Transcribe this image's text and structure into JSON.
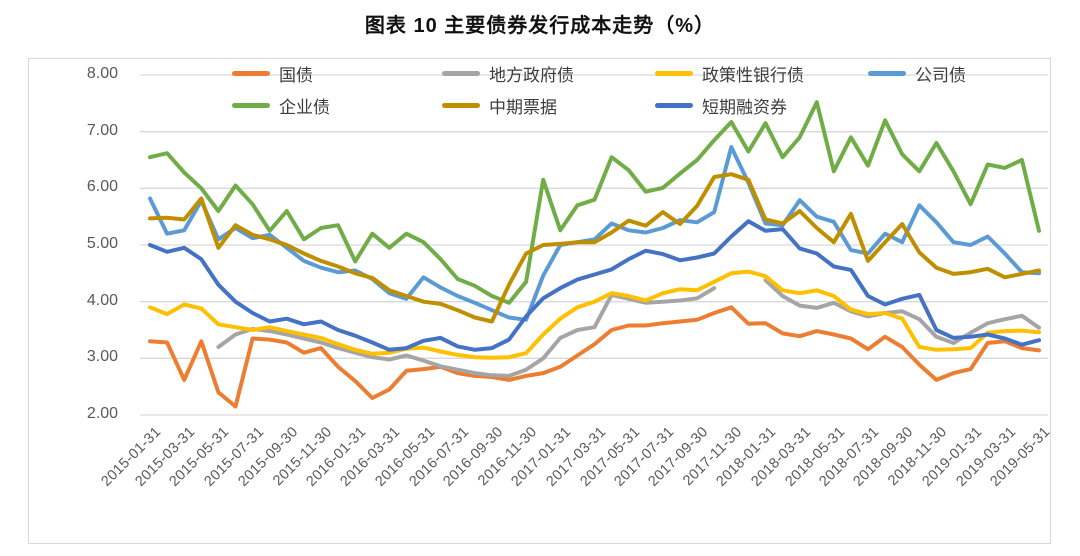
{
  "title": "图表 10 主要债券发行成本走势（%）",
  "chart_data": {
    "type": "line",
    "title": "图表 10 主要债券发行成本走势（%）",
    "ylim": [
      2.0,
      8.0
    ],
    "grid": "horizontal",
    "legend_position": "top",
    "y_ticks": [
      {
        "label": "8.00",
        "v": 8
      },
      {
        "label": "7.00",
        "v": 7
      },
      {
        "label": "6.00",
        "v": 6
      },
      {
        "label": "5.00",
        "v": 5
      },
      {
        "label": "4.00",
        "v": 4
      },
      {
        "label": "3.00",
        "v": 3
      },
      {
        "label": "2.00",
        "v": 2
      }
    ],
    "x_months": [
      "2015-01",
      "2015-02",
      "2015-03",
      "2015-04",
      "2015-05",
      "2015-06",
      "2015-07",
      "2015-08",
      "2015-09",
      "2015-10",
      "2015-11",
      "2015-12",
      "2016-01",
      "2016-02",
      "2016-03",
      "2016-04",
      "2016-05",
      "2016-06",
      "2016-07",
      "2016-08",
      "2016-09",
      "2016-10",
      "2016-11",
      "2016-12",
      "2017-01",
      "2017-02",
      "2017-03",
      "2017-04",
      "2017-05",
      "2017-06",
      "2017-07",
      "2017-08",
      "2017-09",
      "2017-10",
      "2017-11",
      "2017-12",
      "2018-01",
      "2018-02",
      "2018-03",
      "2018-04",
      "2018-05",
      "2018-06",
      "2018-07",
      "2018-08",
      "2018-09",
      "2018-10",
      "2018-11",
      "2018-12",
      "2019-01",
      "2019-02",
      "2019-03",
      "2019-04",
      "2019-05"
    ],
    "x_tick_labels": [
      "2015-01-31",
      "2015-03-31",
      "2015-05-31",
      "2015-07-31",
      "2015-09-30",
      "2015-11-30",
      "2016-01-31",
      "2016-03-31",
      "2016-05-31",
      "2016-07-31",
      "2016-09-30",
      "2016-11-30",
      "2017-01-31",
      "2017-03-31",
      "2017-05-31",
      "2017-07-31",
      "2017-09-30",
      "2017-11-30",
      "2018-01-31",
      "2018-03-31",
      "2018-05-31",
      "2018-07-31",
      "2018-09-30",
      "2018-11-30",
      "2019-01-31",
      "2019-03-31",
      "2019-05-31"
    ],
    "legend_rows": [
      [
        0,
        1,
        2,
        3
      ],
      [
        4,
        5,
        6
      ]
    ],
    "series": [
      {
        "name": "国债",
        "color": "#ED7D31",
        "values": [
          3.3,
          3.28,
          2.62,
          3.3,
          2.4,
          2.15,
          3.35,
          3.33,
          3.28,
          3.1,
          3.18,
          2.85,
          2.6,
          2.3,
          2.45,
          2.78,
          2.81,
          2.85,
          2.74,
          2.69,
          2.67,
          2.62,
          2.69,
          2.74,
          2.85,
          3.05,
          3.25,
          3.5,
          3.58,
          3.58,
          3.62,
          3.65,
          3.68,
          3.8,
          3.9,
          3.61,
          3.62,
          3.44,
          3.39,
          3.48,
          3.42,
          3.35,
          3.16,
          3.38,
          3.2,
          2.89,
          2.62,
          2.74,
          2.81,
          3.27,
          3.3,
          3.18,
          3.14
        ]
      },
      {
        "name": "地方政府债",
        "color": "#A5A5A5",
        "values": [
          null,
          null,
          null,
          null,
          3.2,
          3.42,
          3.52,
          3.48,
          3.42,
          3.35,
          3.28,
          3.18,
          3.1,
          3.02,
          2.98,
          3.05,
          2.96,
          2.86,
          2.8,
          2.74,
          2.7,
          2.69,
          2.8,
          3.0,
          3.36,
          3.5,
          3.55,
          4.12,
          4.05,
          3.98,
          4.0,
          4.02,
          4.06,
          4.24,
          null,
          null,
          4.38,
          4.1,
          3.93,
          3.89,
          3.98,
          3.83,
          3.74,
          3.8,
          3.83,
          3.69,
          3.38,
          3.27,
          3.45,
          3.62,
          3.69,
          3.75,
          3.54
        ]
      },
      {
        "name": "政策性银行债",
        "color": "#FFC000",
        "values": [
          3.9,
          3.78,
          3.95,
          3.88,
          3.6,
          3.55,
          3.5,
          3.55,
          3.48,
          3.42,
          3.36,
          3.25,
          3.15,
          3.08,
          3.1,
          3.17,
          3.19,
          3.12,
          3.06,
          3.02,
          3.01,
          3.02,
          3.09,
          3.42,
          3.7,
          3.9,
          4.0,
          4.15,
          4.1,
          4.02,
          4.15,
          4.22,
          4.2,
          4.35,
          4.5,
          4.53,
          4.45,
          4.2,
          4.15,
          4.2,
          4.1,
          3.86,
          3.78,
          3.8,
          3.7,
          3.2,
          3.15,
          3.16,
          3.18,
          3.45,
          3.48,
          3.49,
          3.46
        ]
      },
      {
        "name": "公司债",
        "color": "#5B9BD5",
        "values": [
          5.82,
          5.2,
          5.26,
          5.78,
          5.1,
          5.3,
          5.12,
          5.18,
          4.95,
          4.72,
          4.6,
          4.52,
          4.55,
          4.4,
          4.15,
          4.05,
          4.43,
          4.25,
          4.1,
          3.98,
          3.85,
          3.72,
          3.68,
          4.46,
          5.0,
          5.05,
          5.1,
          5.38,
          5.26,
          5.22,
          5.3,
          5.44,
          5.4,
          5.58,
          6.73,
          6.1,
          5.38,
          5.35,
          5.79,
          5.5,
          5.41,
          4.91,
          4.85,
          5.2,
          5.05,
          5.7,
          5.4,
          5.05,
          5.0,
          5.15,
          4.85,
          4.52,
          4.5
        ]
      },
      {
        "name": "企业债",
        "color": "#70AD47",
        "values": [
          6.55,
          6.62,
          6.28,
          6.0,
          5.6,
          6.05,
          5.72,
          5.25,
          5.6,
          5.1,
          5.3,
          5.35,
          4.71,
          5.2,
          4.95,
          5.2,
          5.05,
          4.75,
          4.4,
          4.28,
          4.1,
          3.98,
          4.35,
          6.15,
          5.26,
          5.7,
          5.8,
          6.55,
          6.32,
          5.94,
          6.01,
          6.26,
          6.5,
          6.85,
          7.17,
          6.65,
          7.15,
          6.55,
          6.9,
          7.52,
          6.3,
          6.9,
          6.4,
          7.2,
          6.6,
          6.3,
          6.8,
          6.3,
          5.72,
          6.42,
          6.36,
          6.5,
          5.25
        ]
      },
      {
        "name": "中期票据",
        "color": "#BF8F00",
        "values": [
          5.47,
          5.48,
          5.45,
          5.82,
          4.95,
          5.35,
          5.18,
          5.1,
          5.0,
          4.85,
          4.72,
          4.62,
          4.5,
          4.42,
          4.2,
          4.1,
          4.0,
          3.96,
          3.85,
          3.72,
          3.65,
          4.3,
          4.85,
          5.0,
          5.02,
          5.05,
          5.05,
          5.22,
          5.43,
          5.34,
          5.58,
          5.37,
          5.69,
          6.2,
          6.25,
          6.15,
          5.45,
          5.38,
          5.6,
          5.3,
          5.05,
          5.55,
          4.72,
          5.05,
          5.37,
          4.87,
          4.6,
          4.49,
          4.52,
          4.58,
          4.43,
          4.49,
          4.55
        ]
      },
      {
        "name": "短期融资券",
        "color": "#4472C4",
        "values": [
          5.0,
          4.88,
          4.95,
          4.75,
          4.3,
          4.0,
          3.8,
          3.65,
          3.7,
          3.6,
          3.65,
          3.5,
          3.4,
          3.28,
          3.15,
          3.18,
          3.31,
          3.36,
          3.21,
          3.15,
          3.18,
          3.33,
          3.74,
          4.06,
          4.24,
          4.39,
          4.48,
          4.57,
          4.75,
          4.9,
          4.84,
          4.73,
          4.78,
          4.85,
          5.15,
          5.42,
          5.25,
          5.28,
          4.94,
          4.85,
          4.62,
          4.56,
          4.1,
          3.95,
          4.05,
          4.12,
          3.5,
          3.36,
          3.38,
          3.42,
          3.35,
          3.24,
          3.32
        ]
      }
    ]
  },
  "colors": {
    "grid": "#D9D9D9",
    "border": "#D8D8D8",
    "axis_text": "#595959",
    "legend_text": "#3D3D3D",
    "title_text": "#111111",
    "background": "#FFFFFF"
  }
}
